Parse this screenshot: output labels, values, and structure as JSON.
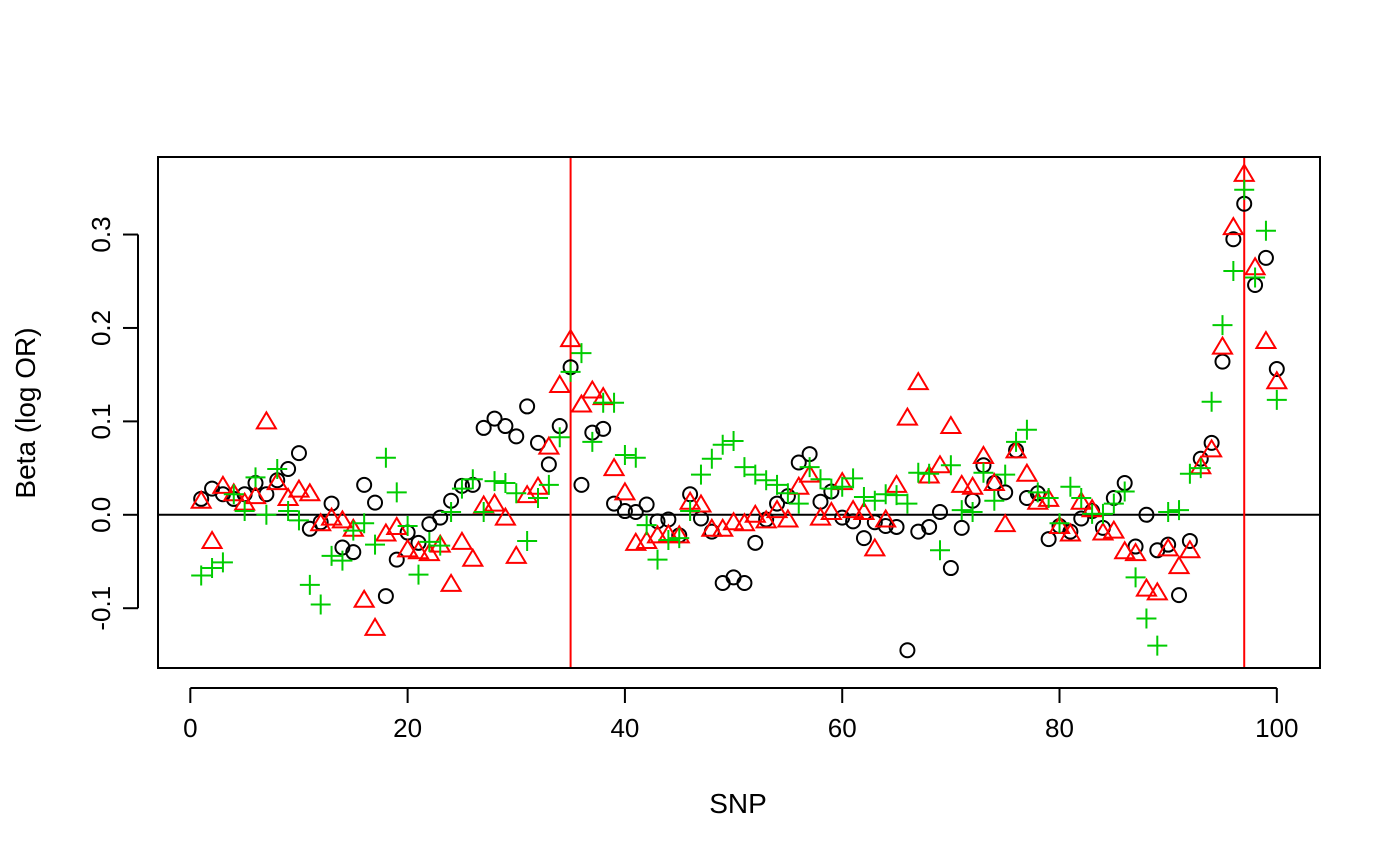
{
  "chart_data": {
    "type": "scatter",
    "title": "",
    "xlabel": "SNP",
    "ylabel": "Beta (log OR)",
    "xlim": [
      -2.975,
      103.975
    ],
    "ylim": [
      -0.164,
      0.383
    ],
    "xticks": [
      0,
      20,
      40,
      60,
      80,
      100
    ],
    "yticks": [
      -0.1,
      0.0,
      0.1,
      0.2,
      0.3
    ],
    "xtick_labels": [
      "0",
      "20",
      "40",
      "60",
      "80",
      "100"
    ],
    "ytick_labels": [
      "-0.1",
      "0.0",
      "0.1",
      "0.2",
      "0.3"
    ],
    "hline": 0,
    "vlines": [
      35,
      97
    ],
    "vline_color": "#ff0000",
    "grid": false,
    "legend": "none",
    "x": [
      1,
      2,
      3,
      4,
      5,
      6,
      7,
      8,
      9,
      10,
      11,
      12,
      13,
      14,
      15,
      16,
      17,
      18,
      19,
      20,
      21,
      22,
      23,
      24,
      25,
      26,
      27,
      28,
      29,
      30,
      31,
      32,
      33,
      34,
      35,
      36,
      37,
      38,
      39,
      40,
      41,
      42,
      43,
      44,
      45,
      46,
      47,
      48,
      49,
      50,
      51,
      52,
      53,
      54,
      55,
      56,
      57,
      58,
      59,
      60,
      61,
      62,
      63,
      64,
      65,
      66,
      67,
      68,
      69,
      70,
      71,
      72,
      73,
      74,
      75,
      76,
      77,
      78,
      79,
      80,
      81,
      82,
      83,
      84,
      85,
      86,
      87,
      88,
      89,
      90,
      91,
      92,
      93,
      94,
      95,
      96,
      97,
      98,
      99,
      100
    ],
    "series": [
      {
        "marker": "circle",
        "color": "#000000",
        "values": [
          0.017,
          0.028,
          0.022,
          0.017,
          0.022,
          0.034,
          0.022,
          0.037,
          0.049,
          0.066,
          -0.015,
          -0.008,
          0.012,
          -0.035,
          -0.04,
          0.032,
          0.013,
          -0.087,
          -0.048,
          -0.019,
          -0.03,
          -0.01,
          -0.003,
          0.015,
          0.031,
          0.032,
          0.093,
          0.103,
          0.095,
          0.084,
          0.116,
          0.077,
          0.054,
          0.095,
          0.158,
          0.032,
          0.088,
          0.092,
          0.012,
          0.004,
          0.003,
          0.011,
          -0.007,
          -0.005,
          -0.022,
          0.022,
          -0.004,
          -0.018,
          -0.073,
          -0.067,
          -0.073,
          -0.03,
          -0.005,
          0.012,
          0.02,
          0.056,
          0.065,
          0.014,
          0.025,
          -0.003,
          -0.007,
          -0.025,
          -0.008,
          -0.012,
          -0.013,
          -0.145,
          -0.018,
          -0.013,
          0.003,
          -0.057,
          -0.014,
          0.015,
          0.053,
          0.034,
          0.024,
          0.069,
          0.018,
          0.023,
          -0.026,
          -0.012,
          -0.018,
          -0.004,
          0.004,
          -0.014,
          0.018,
          0.034,
          -0.034,
          0.0,
          -0.038,
          -0.032,
          -0.086,
          -0.028,
          0.06,
          0.077,
          0.164,
          0.295,
          0.333,
          0.246,
          0.275,
          0.156
        ]
      },
      {
        "marker": "triangle",
        "color": "#ff0000",
        "values": [
          0.015,
          -0.028,
          0.031,
          0.023,
          0.013,
          0.02,
          0.1,
          0.035,
          0.018,
          0.027,
          0.023,
          -0.009,
          -0.003,
          -0.006,
          -0.015,
          -0.091,
          -0.121,
          -0.02,
          -0.013,
          -0.037,
          -0.039,
          -0.041,
          -0.032,
          -0.074,
          -0.029,
          -0.047,
          0.01,
          0.012,
          -0.003,
          -0.044,
          0.021,
          0.03,
          0.073,
          0.139,
          0.188,
          0.118,
          0.133,
          0.126,
          0.05,
          0.024,
          -0.03,
          -0.028,
          -0.022,
          -0.021,
          -0.022,
          0.014,
          0.011,
          -0.015,
          -0.015,
          -0.008,
          -0.009,
          0.0,
          -0.006,
          0.005,
          -0.005,
          0.03,
          0.043,
          -0.003,
          0.003,
          0.035,
          0.005,
          0.003,
          -0.036,
          -0.005,
          0.032,
          0.104,
          0.142,
          0.042,
          0.053,
          0.095,
          0.032,
          0.03,
          0.063,
          0.034,
          -0.01,
          0.069,
          0.044,
          0.014,
          0.017,
          -0.012,
          -0.02,
          0.014,
          0.006,
          -0.019,
          -0.017,
          -0.039,
          -0.041,
          -0.079,
          -0.083,
          -0.036,
          -0.055,
          -0.038,
          0.052,
          0.07,
          0.18,
          0.308,
          0.365,
          0.265,
          0.186,
          0.143
        ]
      },
      {
        "marker": "plus",
        "color": "#00cc00",
        "values": [
          -0.065,
          -0.057,
          -0.051,
          0.022,
          0.004,
          0.04,
          0.0,
          0.049,
          0.004,
          -0.006,
          -0.075,
          -0.096,
          -0.044,
          -0.049,
          -0.017,
          -0.009,
          -0.032,
          0.061,
          0.024,
          -0.012,
          -0.064,
          -0.029,
          -0.033,
          0.003,
          0.028,
          0.038,
          0.003,
          0.036,
          0.034,
          0.023,
          -0.028,
          0.018,
          0.032,
          0.083,
          0.153,
          0.173,
          0.078,
          0.12,
          0.12,
          0.064,
          0.061,
          -0.011,
          -0.048,
          -0.027,
          -0.025,
          0.004,
          0.043,
          0.06,
          0.075,
          0.079,
          0.051,
          0.043,
          0.037,
          0.032,
          0.023,
          0.012,
          0.051,
          0.038,
          0.028,
          0.03,
          0.039,
          0.019,
          0.015,
          0.022,
          0.021,
          0.012,
          0.045,
          0.044,
          -0.038,
          0.053,
          0.005,
          0.003,
          0.045,
          0.015,
          0.043,
          0.078,
          0.091,
          0.024,
          0.018,
          -0.009,
          0.03,
          0.018,
          0.001,
          0.001,
          0.012,
          0.025,
          -0.067,
          -0.111,
          -0.14,
          0.003,
          0.005,
          0.044,
          0.05,
          0.121,
          0.203,
          0.261,
          0.348,
          0.254,
          0.304,
          0.123
        ]
      }
    ]
  }
}
